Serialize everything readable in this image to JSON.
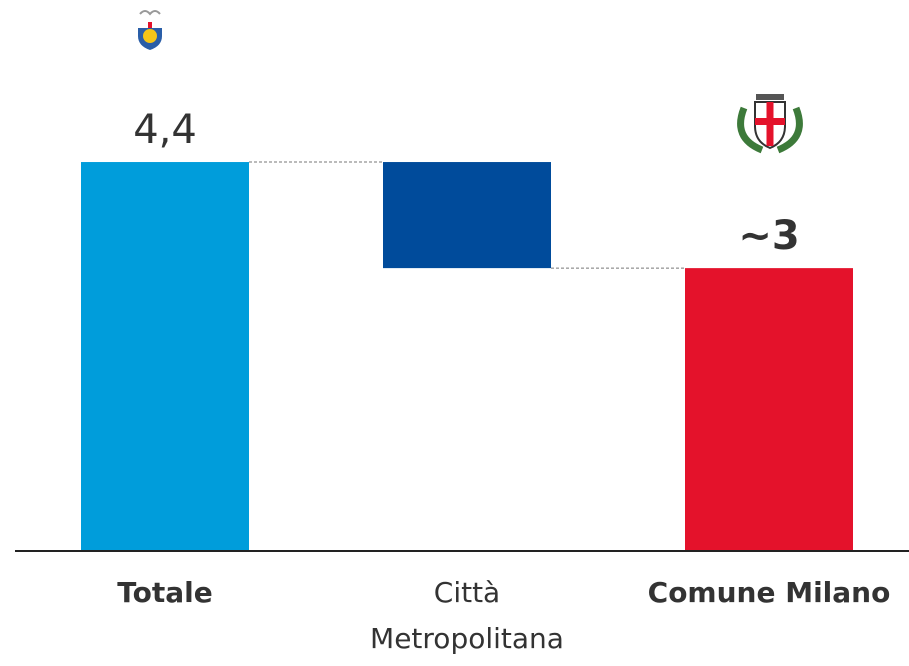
{
  "chart_data": {
    "type": "waterfall",
    "categories": [
      "Totale",
      "Città Metropolitana",
      "Comune Milano"
    ],
    "values": [
      4.4,
      -1.2,
      3.2
    ],
    "value_labels": [
      "4,4",
      null,
      "~3"
    ],
    "measure": [
      "total",
      "relative",
      "total"
    ],
    "colors": [
      "#009ddb",
      "#004b9b",
      "#e4122b"
    ],
    "ylim": [
      0,
      5
    ]
  }
}
